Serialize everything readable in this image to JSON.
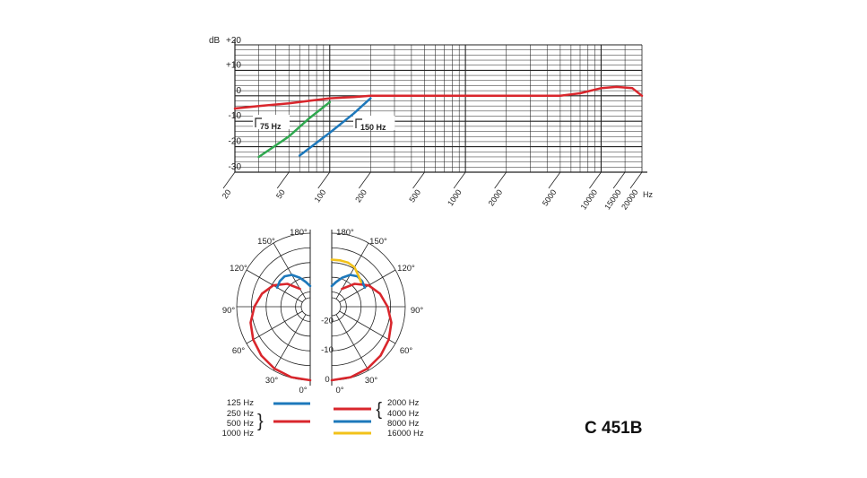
{
  "model_label": "C 451B",
  "colors": {
    "red": "#d9262c",
    "blue": "#1d78bb",
    "green": "#2fa84f",
    "yellow": "#f2c21a",
    "grid": "#222222"
  },
  "chart_data": [
    {
      "type": "line",
      "xscale": "log",
      "xlim": [
        20,
        20000
      ],
      "ylim": [
        -30,
        20
      ],
      "ylabel": "dB",
      "xlabel": "Hz",
      "xticks": [
        20,
        50,
        100,
        200,
        500,
        1000,
        2000,
        5000,
        10000,
        15000,
        20000
      ],
      "xtick_labels": [
        "20",
        "50",
        "100",
        "200",
        "500",
        "1000",
        "2000",
        "5000",
        "10000",
        "15000",
        "20000"
      ],
      "yticks": [
        20,
        10,
        0,
        -10,
        -20,
        -30
      ],
      "ytick_labels": [
        "+20",
        "+10",
        "0",
        "-10",
        "-20",
        "-30"
      ],
      "grid": true,
      "annotations": [
        "75 Hz",
        "150 Hz"
      ],
      "series": [
        {
          "color": "red",
          "x": [
            20,
            30,
            50,
            70,
            100,
            150,
            200,
            500,
            1000,
            2000,
            5000,
            7000,
            10000,
            13000,
            17000,
            20000
          ],
          "y": [
            -5,
            -4,
            -3,
            -2,
            -1,
            -0.5,
            0,
            0,
            0,
            0,
            0,
            1,
            3,
            3.5,
            3,
            0
          ]
        },
        {
          "color": "green",
          "x": [
            30,
            50,
            70,
            100
          ],
          "y": [
            -24,
            -16,
            -9,
            -2.5
          ]
        },
        {
          "color": "blue",
          "x": [
            60,
            100,
            150,
            200
          ],
          "y": [
            -23.5,
            -14.5,
            -7,
            -1
          ]
        }
      ]
    },
    {
      "type": "polar",
      "rlim": [
        -25,
        0
      ],
      "rticks": [
        -20,
        -10,
        0
      ],
      "rtick_labels": [
        "-20",
        "-10",
        "0"
      ],
      "angle_labels": [
        "0°",
        "30°",
        "60°",
        "90°",
        "120°",
        "150°",
        "180°"
      ],
      "left_half_legend": [
        {
          "labels": [
            "125 Hz"
          ],
          "color": "blue"
        },
        {
          "labels": [
            "250 Hz",
            "500 Hz",
            "1000 Hz"
          ],
          "color": "red"
        }
      ],
      "right_half_legend": [
        {
          "labels": [
            "2000 Hz",
            "4000 Hz"
          ],
          "color": "red"
        },
        {
          "labels": [
            "8000 Hz"
          ],
          "color": "blue"
        },
        {
          "labels": [
            "16000 Hz"
          ],
          "color": "yellow"
        }
      ],
      "series": [
        {
          "side": "left",
          "color": "red",
          "theta": [
            0,
            15,
            30,
            45,
            60,
            75,
            90,
            105,
            120,
            135,
            150
          ],
          "db": [
            0,
            -0.2,
            -0.7,
            -1.5,
            -2.6,
            -4,
            -6,
            -8,
            -10.5,
            -14,
            -18
          ]
        },
        {
          "side": "left",
          "color": "blue",
          "theta": [
            120,
            130,
            140,
            150,
            160,
            170,
            180
          ],
          "db": [
            -12,
            -11.5,
            -11.5,
            -12.5,
            -14.5,
            -16.5,
            -18
          ]
        },
        {
          "side": "right",
          "color": "red",
          "theta": [
            0,
            15,
            30,
            45,
            60,
            75,
            90,
            105,
            120,
            135,
            150
          ],
          "db": [
            0,
            -0.2,
            -0.7,
            -1.5,
            -2.6,
            -4,
            -6,
            -8,
            -10.5,
            -14,
            -18
          ]
        },
        {
          "side": "right",
          "color": "blue",
          "theta": [
            120,
            130,
            140,
            150,
            160,
            170,
            180
          ],
          "db": [
            -12,
            -11.5,
            -11.5,
            -12.5,
            -14.5,
            -16.5,
            -18
          ]
        },
        {
          "side": "right",
          "color": "yellow",
          "theta": [
            130,
            140,
            150,
            160,
            170,
            180
          ],
          "db": [
            -12,
            -11,
            -9.5,
            -9,
            -9,
            -9
          ]
        }
      ]
    }
  ]
}
